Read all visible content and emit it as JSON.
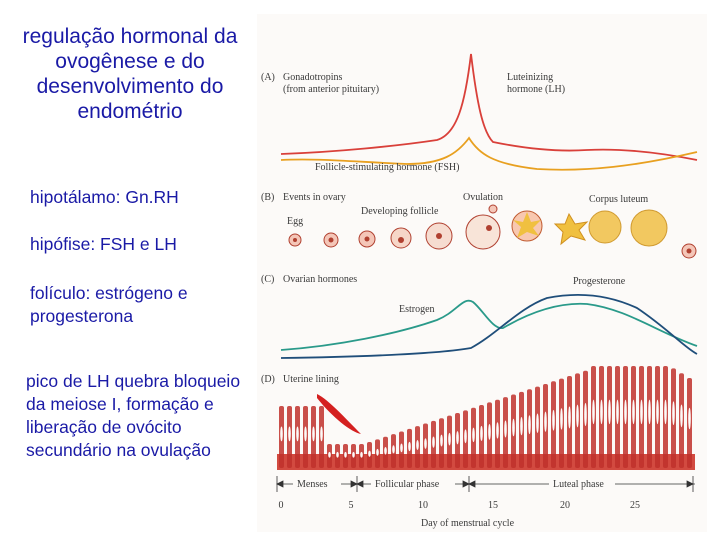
{
  "slide": {
    "title": "regulação hormonal da ovogênese e do desenvolvimento do endométrio",
    "bullets": [
      "hipotálamo: Gn.RH",
      "hipófise: FSH e LH",
      "folículo: estrógeno e progesterona",
      "pico de LH quebra bloqueio da meiose I, formação e liberação de ovócito secundário na ovulação"
    ]
  },
  "figure": {
    "panel_a": {
      "label": "(A)",
      "title_line1": "Gonadotropins",
      "title_line2": "(from anterior pituitary)",
      "lh_line1": "Luteinizing",
      "lh_line2": "hormone (LH)",
      "fsh_label": "Follicle-stimulating hormone (FSH)"
    },
    "panel_b": {
      "label": "(B)",
      "title": "Events in ovary",
      "egg": "Egg",
      "developing_follicle": "Developing follicle",
      "ovulation": "Ovulation",
      "corpus_luteum": "Corpus luteum"
    },
    "panel_c": {
      "label": "(C)",
      "title": "Ovarian hormones",
      "estrogen": "Estrogen",
      "progesterone": "Progesterone"
    },
    "panel_d": {
      "label": "(D)",
      "title": "Uterine lining"
    },
    "phases": {
      "menses": "Menses",
      "follicular": "Follicular phase",
      "luteal": "Luteal phase"
    },
    "axis": {
      "ticks": [
        "0",
        "5",
        "10",
        "15",
        "20",
        "25"
      ],
      "label": "Day of menstrual cycle"
    },
    "colors": {
      "lh": "#d9403a",
      "fsh": "#e8a020",
      "estrogen": "#2a9a8a",
      "progesterone": "#1f4e7a",
      "endometrium": "#c0302c",
      "follicle": "#f0c070"
    }
  }
}
